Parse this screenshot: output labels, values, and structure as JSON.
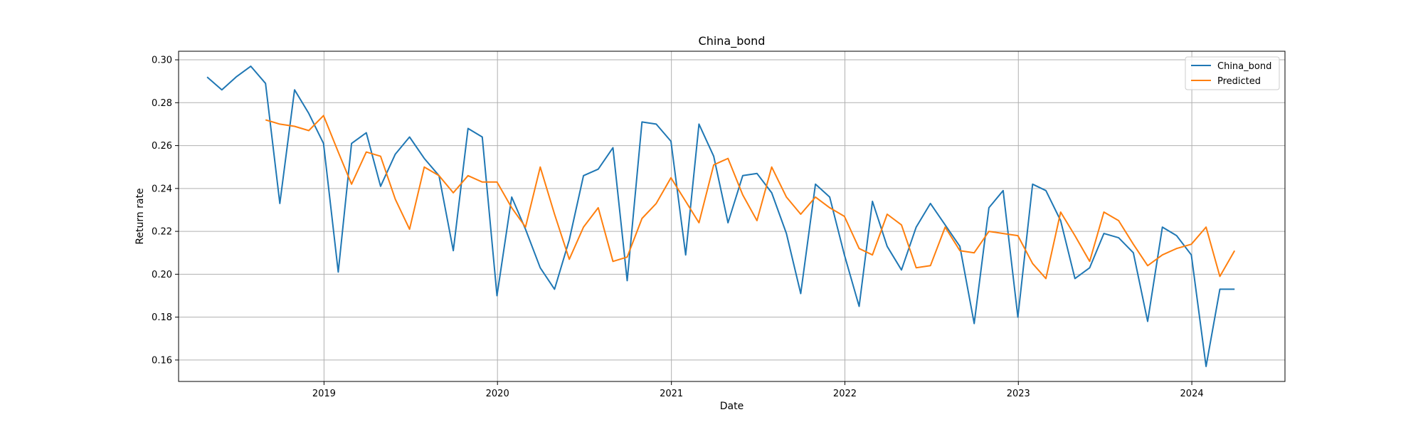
{
  "chart_data": {
    "type": "line",
    "title": "China_bond",
    "xlabel": "Date",
    "ylabel": "Return rate",
    "xlim": [
      "2018-03-01",
      "2024-07-15"
    ],
    "ylim": [
      0.15,
      0.304
    ],
    "grid": true,
    "legend_position": "top-right",
    "x_ticks": [
      "2019",
      "2020",
      "2021",
      "2022",
      "2023",
      "2024"
    ],
    "y_ticks": [
      "0.16",
      "0.18",
      "0.20",
      "0.22",
      "0.24",
      "0.26",
      "0.28",
      "0.30"
    ],
    "series": [
      {
        "name": "China_bond",
        "color": "#1f77b4",
        "x": [
          "2018-04-30",
          "2018-05-31",
          "2018-06-30",
          "2018-07-31",
          "2018-08-31",
          "2018-09-30",
          "2018-10-31",
          "2018-11-30",
          "2018-12-31",
          "2019-01-31",
          "2019-02-28",
          "2019-03-31",
          "2019-04-30",
          "2019-05-31",
          "2019-06-30",
          "2019-07-31",
          "2019-08-31",
          "2019-09-30",
          "2019-10-31",
          "2019-11-30",
          "2019-12-31",
          "2020-01-31",
          "2020-02-29",
          "2020-03-31",
          "2020-04-30",
          "2020-05-31",
          "2020-06-30",
          "2020-07-31",
          "2020-08-31",
          "2020-09-30",
          "2020-10-31",
          "2020-11-30",
          "2020-12-31",
          "2021-01-31",
          "2021-02-28",
          "2021-03-31",
          "2021-04-30",
          "2021-05-31",
          "2021-06-30",
          "2021-07-31",
          "2021-08-31",
          "2021-09-30",
          "2021-10-31",
          "2021-11-30",
          "2021-12-31",
          "2022-01-31",
          "2022-02-28",
          "2022-03-31",
          "2022-04-30",
          "2022-05-31",
          "2022-06-30",
          "2022-07-31",
          "2022-08-31",
          "2022-09-30",
          "2022-10-31",
          "2022-11-30",
          "2022-12-31",
          "2023-01-31",
          "2023-02-28",
          "2023-03-31",
          "2023-04-30",
          "2023-05-31",
          "2023-06-30",
          "2023-07-31",
          "2023-08-31",
          "2023-09-30",
          "2023-10-31",
          "2023-11-30",
          "2023-12-31",
          "2024-01-31",
          "2024-02-29",
          "2024-03-31"
        ],
        "values": [
          0.292,
          0.286,
          0.292,
          0.297,
          0.289,
          0.233,
          0.286,
          0.275,
          0.261,
          0.201,
          0.261,
          0.266,
          0.241,
          0.256,
          0.264,
          0.254,
          0.246,
          0.211,
          0.268,
          0.264,
          0.19,
          0.236,
          0.221,
          0.203,
          0.193,
          0.216,
          0.246,
          0.249,
          0.259,
          0.197,
          0.271,
          0.27,
          0.262,
          0.209,
          0.27,
          0.255,
          0.224,
          0.246,
          0.247,
          0.238,
          0.219,
          0.191,
          0.242,
          0.236,
          0.209,
          0.185,
          0.234,
          0.213,
          0.202,
          0.222,
          0.233,
          0.223,
          0.213,
          0.177,
          0.231,
          0.239,
          0.18,
          0.242,
          0.239,
          0.225,
          0.198,
          0.203,
          0.219,
          0.217,
          0.21,
          0.178,
          0.222,
          0.218,
          0.209,
          0.157,
          0.193,
          0.193
        ]
      },
      {
        "name": "Predicted",
        "color": "#ff7f0e",
        "x": [
          "2018-08-31",
          "2018-09-30",
          "2018-10-31",
          "2018-11-30",
          "2018-12-31",
          "2019-01-31",
          "2019-02-28",
          "2019-03-31",
          "2019-04-30",
          "2019-05-31",
          "2019-06-30",
          "2019-07-31",
          "2019-08-31",
          "2019-09-30",
          "2019-10-31",
          "2019-11-30",
          "2019-12-31",
          "2020-01-31",
          "2020-02-29",
          "2020-03-31",
          "2020-04-30",
          "2020-05-31",
          "2020-06-30",
          "2020-07-31",
          "2020-08-31",
          "2020-09-30",
          "2020-10-31",
          "2020-11-30",
          "2020-12-31",
          "2021-01-31",
          "2021-02-28",
          "2021-03-31",
          "2021-04-30",
          "2021-05-31",
          "2021-06-30",
          "2021-07-31",
          "2021-08-31",
          "2021-09-30",
          "2021-10-31",
          "2021-11-30",
          "2021-12-31",
          "2022-01-31",
          "2022-02-28",
          "2022-03-31",
          "2022-04-30",
          "2022-05-31",
          "2022-06-30",
          "2022-07-31",
          "2022-08-31",
          "2022-09-30",
          "2022-10-31",
          "2022-11-30",
          "2022-12-31",
          "2023-01-31",
          "2023-02-28",
          "2023-03-31",
          "2023-04-30",
          "2023-05-31",
          "2023-06-30",
          "2023-07-31",
          "2023-08-31",
          "2023-09-30",
          "2023-10-31",
          "2023-11-30",
          "2023-12-31",
          "2024-01-31",
          "2024-02-29",
          "2024-03-31"
        ],
        "values": [
          0.272,
          0.27,
          0.269,
          0.267,
          0.274,
          0.257,
          0.242,
          0.257,
          0.255,
          0.235,
          0.221,
          0.25,
          0.246,
          0.238,
          0.246,
          0.243,
          0.243,
          0.231,
          0.222,
          0.25,
          0.228,
          0.207,
          0.222,
          0.231,
          0.206,
          0.208,
          0.226,
          0.233,
          0.245,
          0.234,
          0.224,
          0.251,
          0.254,
          0.237,
          0.225,
          0.25,
          0.236,
          0.228,
          0.236,
          0.231,
          0.227,
          0.212,
          0.209,
          0.228,
          0.223,
          0.203,
          0.204,
          0.222,
          0.211,
          0.21,
          0.22,
          0.219,
          0.218,
          0.205,
          0.198,
          0.229,
          0.218,
          0.206,
          0.229,
          0.225,
          0.214,
          0.204,
          0.209,
          0.212,
          0.214,
          0.222,
          0.199,
          0.211
        ]
      }
    ]
  }
}
